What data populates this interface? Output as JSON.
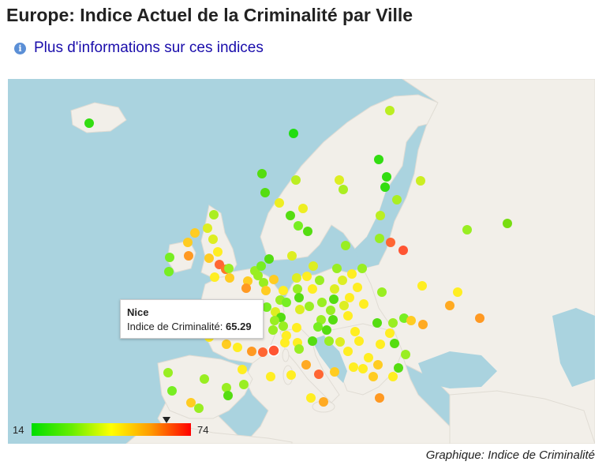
{
  "header": {
    "title": "Europe: Indice Actuel de la Criminalité par Ville",
    "info_link": "Plus d'informations sur ces indices",
    "info_icon": "info-icon"
  },
  "map": {
    "land_color": "#f2efe9",
    "water_color": "#aad3df",
    "tooltip": {
      "city": "Nice",
      "label": "Indice de Criminalité:",
      "value": "65.29"
    },
    "legend": {
      "min": "14",
      "max": "74",
      "marker_value": 65.29,
      "colors": [
        "#00dd00",
        "#66ee00",
        "#ffff00",
        "#ff9900",
        "#ff0000"
      ]
    }
  },
  "footer": {
    "caption": "Graphique: Indice de Criminalité"
  }
}
